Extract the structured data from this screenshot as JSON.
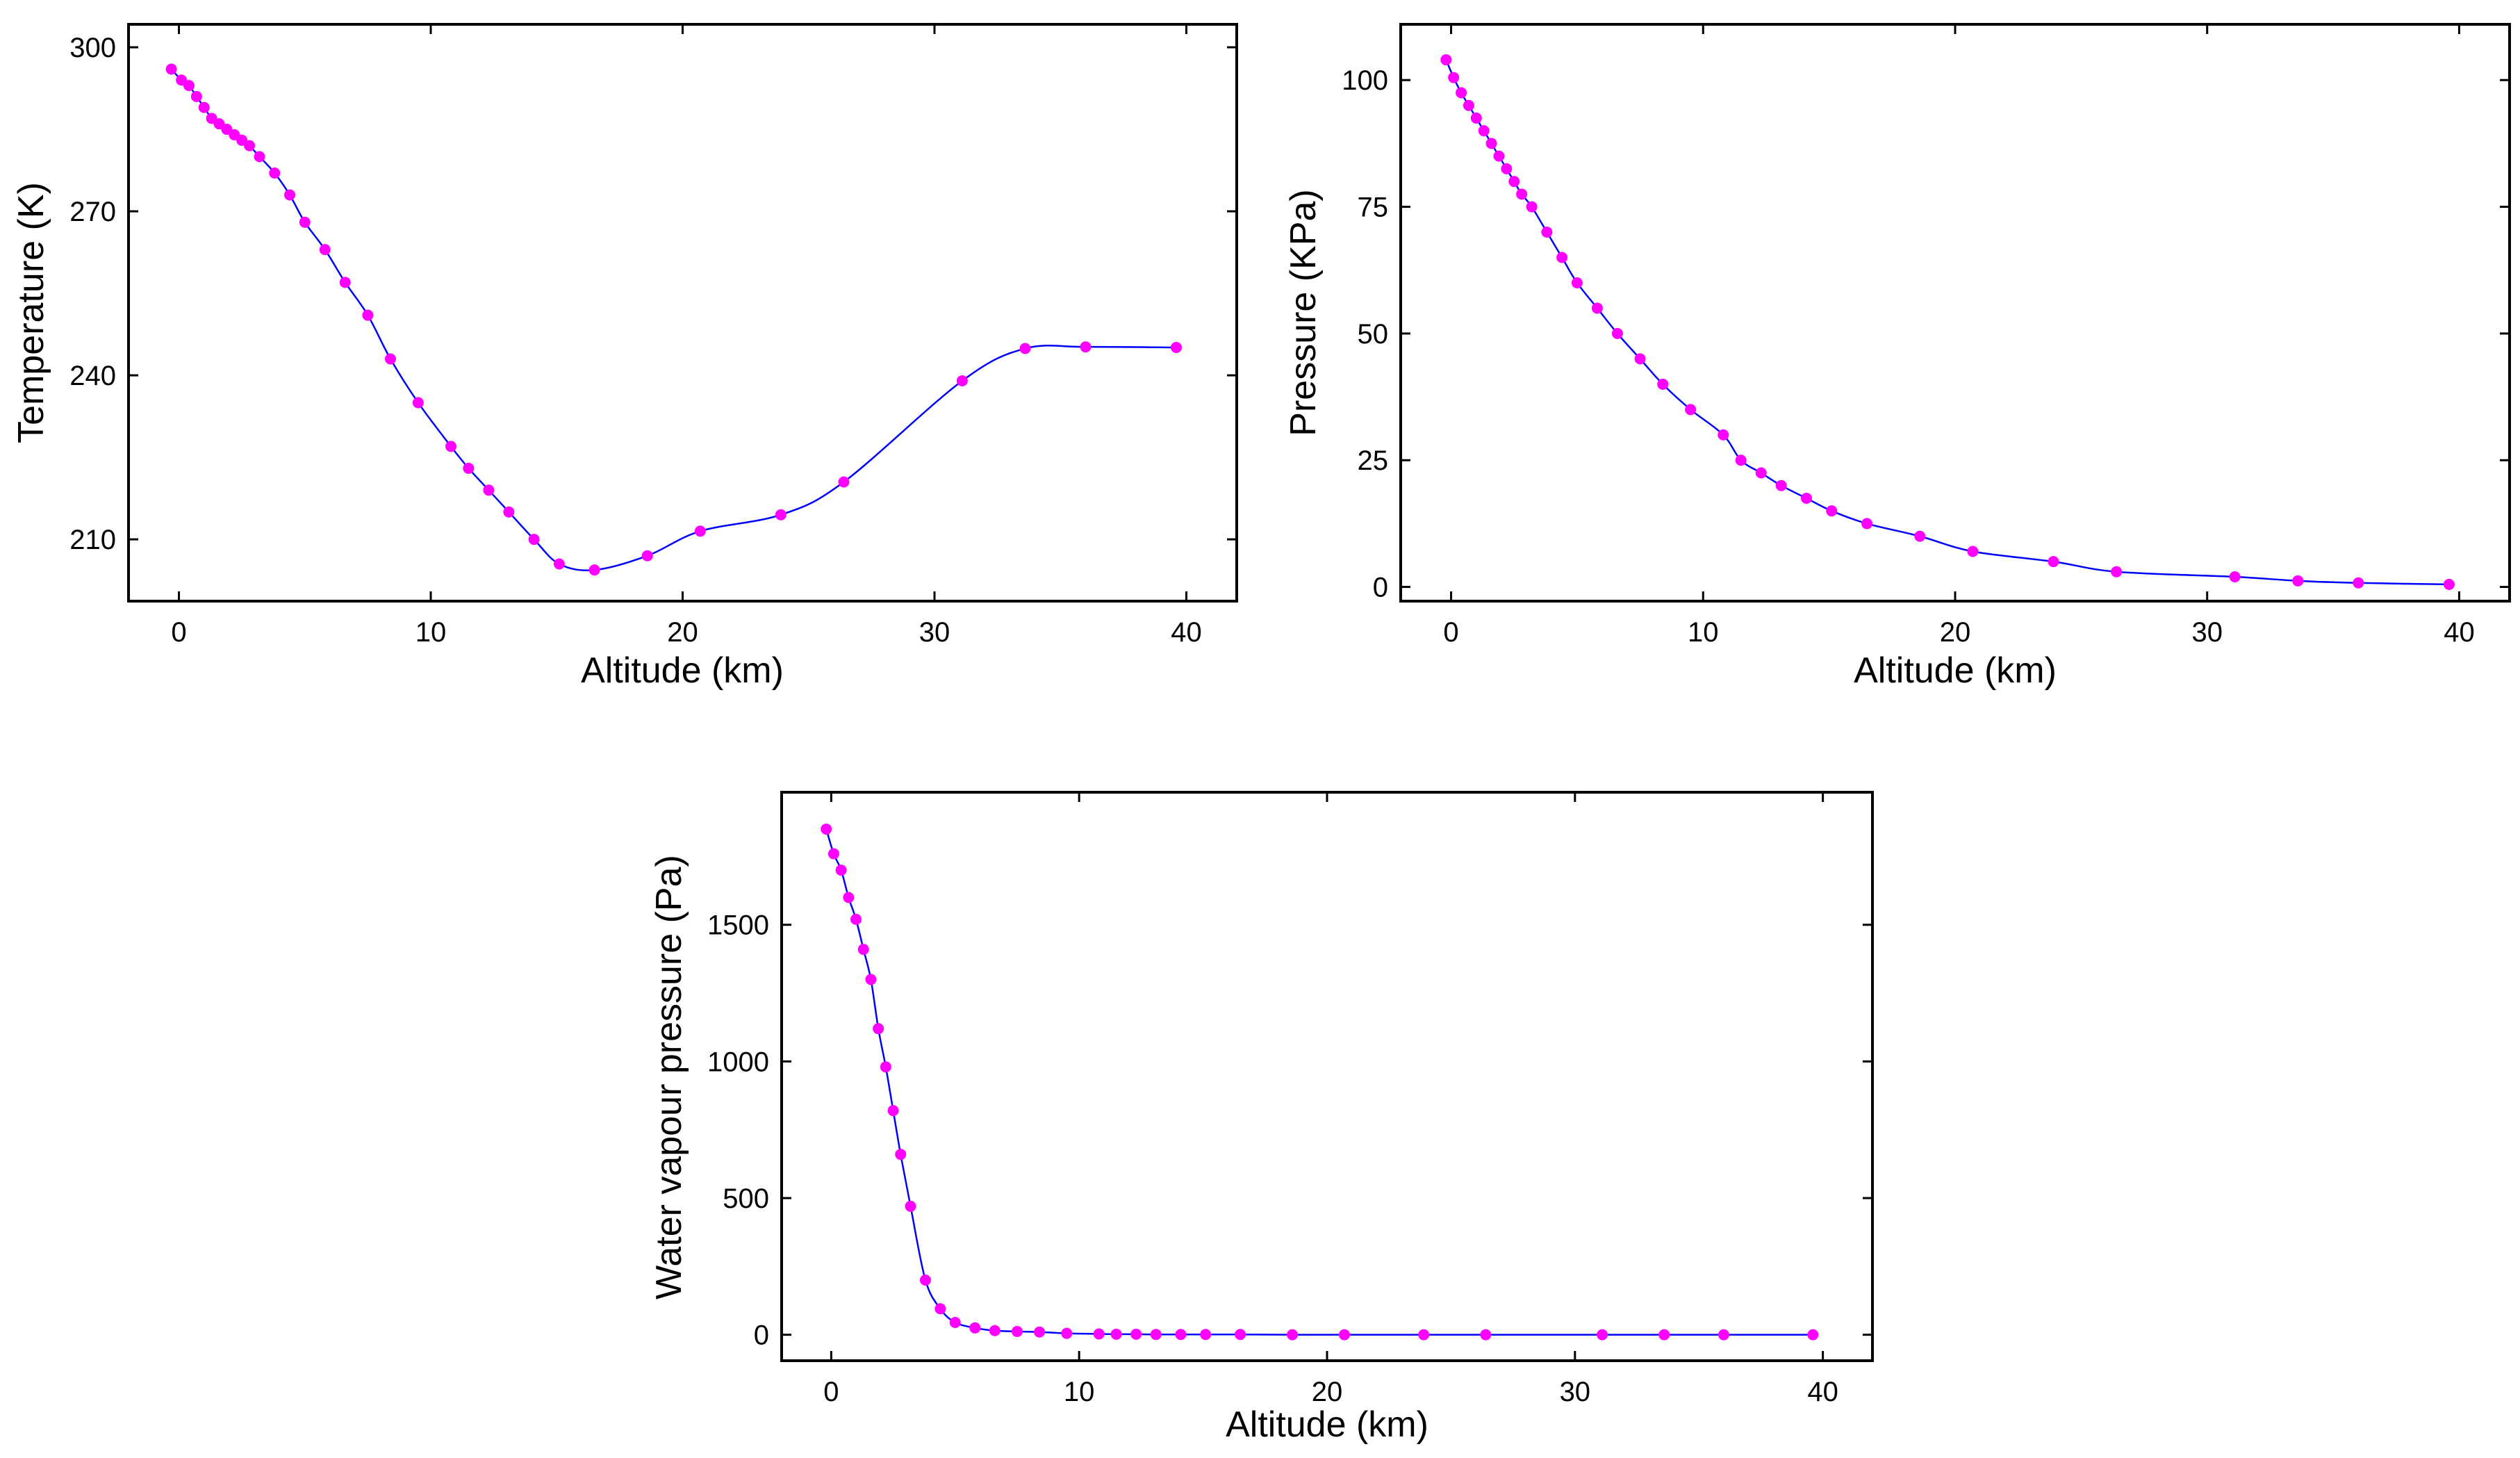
{
  "colors": {
    "line": "#0000ff",
    "marker": "#ff00ff",
    "frame": "#000000"
  },
  "chart_data": [
    {
      "type": "line",
      "xlabel": "Altitude (km)",
      "ylabel": "Temperature (K)",
      "xlim": [
        -2,
        42
      ],
      "ylim": [
        198.7,
        304.2
      ],
      "xticks": [
        0,
        10,
        20,
        30,
        40
      ],
      "yticks": [
        210,
        240,
        270,
        300
      ],
      "grid": false,
      "legend": "none",
      "x": [
        -0.3,
        0.1,
        0.4,
        0.7,
        1.0,
        1.3,
        1.6,
        1.9,
        2.2,
        2.5,
        2.8,
        3.2,
        3.8,
        4.4,
        5.0,
        5.8,
        6.6,
        7.5,
        8.4,
        9.5,
        10.8,
        11.5,
        12.3,
        13.1,
        14.1,
        15.1,
        16.5,
        18.6,
        20.7,
        23.9,
        26.4,
        31.1,
        33.6,
        36.0,
        39.6
      ],
      "values": [
        296,
        294,
        293,
        291,
        289,
        287,
        286,
        285,
        284,
        283,
        282,
        280,
        277,
        273,
        268,
        263,
        257,
        251,
        243,
        235,
        227,
        223,
        219,
        215,
        210,
        205.5,
        204.4,
        207,
        211.5,
        214.5,
        220.5,
        239,
        244.9,
        245.2,
        245.1
      ]
    },
    {
      "type": "line",
      "xlabel": "Altitude (km)",
      "ylabel": "Pressure (KPa)",
      "xlim": [
        -2,
        42
      ],
      "ylim": [
        -2.8,
        111
      ],
      "xticks": [
        0,
        10,
        20,
        30,
        40
      ],
      "yticks": [
        0,
        25,
        50,
        75,
        100
      ],
      "grid": false,
      "legend": "none",
      "x": [
        -0.2,
        0.1,
        0.4,
        0.7,
        1.0,
        1.3,
        1.6,
        1.9,
        2.2,
        2.5,
        2.8,
        3.2,
        3.8,
        4.4,
        5.0,
        5.8,
        6.6,
        7.5,
        8.4,
        9.5,
        10.8,
        11.5,
        12.3,
        13.1,
        14.1,
        15.1,
        16.5,
        18.6,
        20.7,
        23.9,
        26.4,
        31.1,
        33.6,
        36.0,
        39.6
      ],
      "values": [
        104,
        100.5,
        97.5,
        95,
        92.5,
        90,
        87.5,
        85,
        82.5,
        80,
        77.5,
        75,
        70,
        65,
        60,
        55,
        50,
        45,
        40,
        35,
        30,
        25,
        22.5,
        20,
        17.5,
        15,
        12.5,
        10,
        7,
        5,
        3,
        2,
        1.2,
        0.8,
        0.5
      ]
    },
    {
      "type": "line",
      "xlabel": "Altitude (km)",
      "ylabel": "Water vapour pressure (Pa)",
      "xlim": [
        -2,
        42
      ],
      "ylim": [
        -95,
        1985
      ],
      "xticks": [
        0,
        10,
        20,
        30,
        40
      ],
      "yticks": [
        0,
        500,
        1000,
        1500
      ],
      "grid": false,
      "legend": "none",
      "x": [
        -0.2,
        0.1,
        0.4,
        0.7,
        1.0,
        1.3,
        1.6,
        1.9,
        2.2,
        2.5,
        2.8,
        3.2,
        3.8,
        4.4,
        5.0,
        5.8,
        6.6,
        7.5,
        8.4,
        9.5,
        10.8,
        11.5,
        12.3,
        13.1,
        14.1,
        15.1,
        16.5,
        18.6,
        20.7,
        23.9,
        26.4,
        31.1,
        33.6,
        36.0,
        39.6
      ],
      "values": [
        1850,
        1760,
        1700,
        1600,
        1520,
        1410,
        1300,
        1120,
        980,
        820,
        660,
        470,
        200,
        95,
        45,
        25,
        15,
        12,
        10,
        5,
        3,
        2,
        2,
        1,
        1,
        1,
        1,
        0,
        0,
        0,
        0,
        0,
        0,
        0,
        0
      ]
    }
  ]
}
